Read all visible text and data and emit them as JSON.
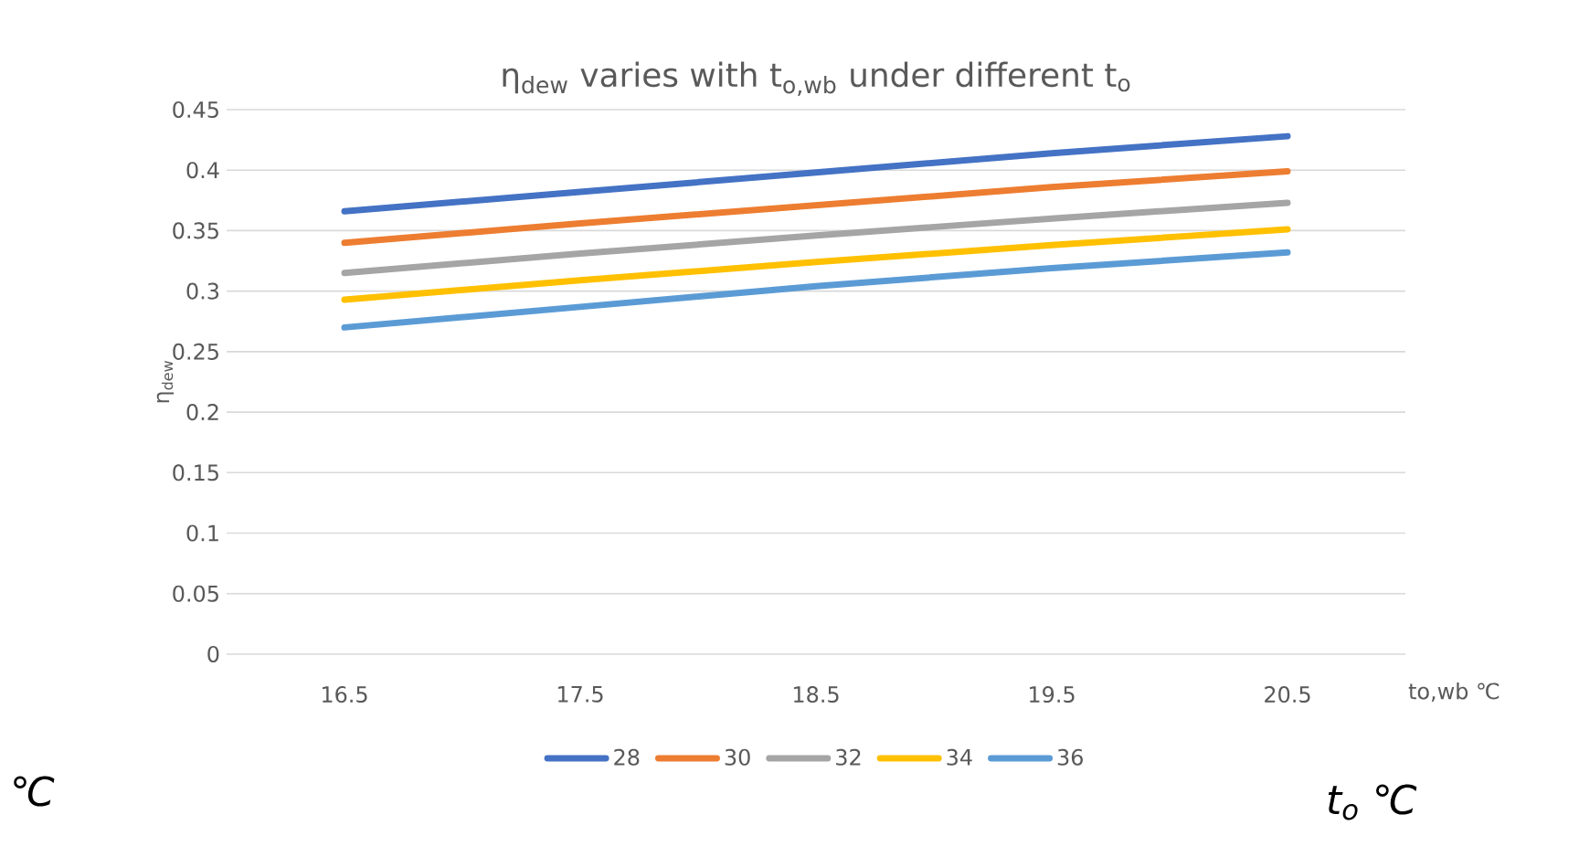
{
  "chart_data": {
    "type": "line",
    "title": "η$_{dew}$ varies with t$_{o,wb}$ under different t$_{o}$",
    "xlabel": "to,wb  ℃",
    "ylabel": "η$_{dew}$",
    "legend_title": "t$_{o}$ ℃",
    "annotations": [
      "℃"
    ],
    "categories": [
      "16.5",
      "17.5",
      "18.5",
      "19.5",
      "20.5"
    ],
    "series": [
      {
        "name": "28",
        "color": "#4472c4",
        "values": [
          0.366,
          0.382,
          0.398,
          0.414,
          0.428
        ]
      },
      {
        "name": "30",
        "color": "#ed7d31",
        "values": [
          0.34,
          0.356,
          0.371,
          0.386,
          0.399
        ]
      },
      {
        "name": "32",
        "color": "#a5a5a5",
        "values": [
          0.315,
          0.331,
          0.346,
          0.36,
          0.373
        ]
      },
      {
        "name": "34",
        "color": "#ffc000",
        "values": [
          0.293,
          0.309,
          0.324,
          0.338,
          0.351
        ]
      },
      {
        "name": "36",
        "color": "#5b9bd5",
        "values": [
          0.27,
          0.287,
          0.304,
          0.319,
          0.332
        ]
      }
    ],
    "ylim": [
      0,
      0.45
    ],
    "yticks": [
      0,
      0.05,
      0.1,
      0.15,
      0.2,
      0.25,
      0.3,
      0.35,
      0.4,
      0.45
    ],
    "grid": "y",
    "legend": "bottom"
  }
}
